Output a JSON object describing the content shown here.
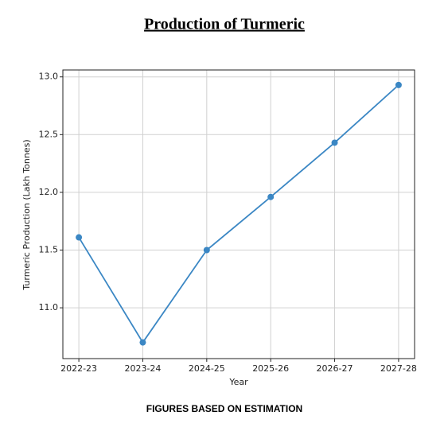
{
  "chart_data": {
    "type": "line",
    "title": "Production of Turmeric",
    "categories": [
      "2022-23",
      "2023-24",
      "2024-25",
      "2025-26",
      "2026-27",
      "2027-28"
    ],
    "values": [
      11.61,
      10.7,
      11.5,
      11.96,
      12.43,
      12.93
    ],
    "color": "#3b87c4",
    "ylim": [
      10.56,
      13.06
    ],
    "yticks": [
      {
        "value": 11,
        "label": "11.0"
      },
      11.5,
      {
        "value": 12,
        "label": "12.0"
      },
      12.5,
      {
        "value": 13,
        "label": "13.0"
      }
    ],
    "grid": true,
    "x_label": "Year",
    "y_label": "Turmeric Production (Lakh Tonnes)",
    "footnote": "FIGURES BASED ON ESTIMATION"
  }
}
